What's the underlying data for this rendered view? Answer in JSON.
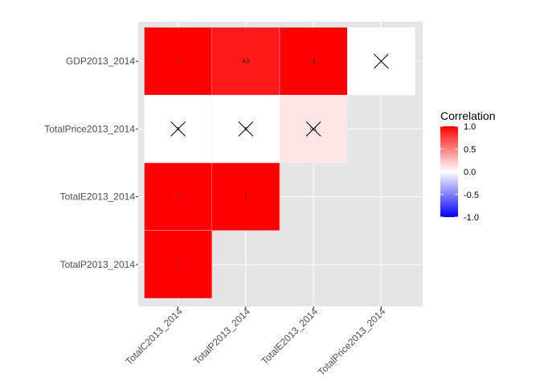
{
  "chart_data": {
    "type": "heatmap",
    "title": "",
    "xlabel": "",
    "ylabel": "",
    "x_categories": [
      "TotalC2013_2014",
      "TotalP2013_2014",
      "TotalE2013_2014",
      "TotalPrice2013_2014"
    ],
    "y_categories": [
      "GDP2013_2014",
      "TotalPrice2013_2014",
      "TotalE2013_2014",
      "TotalP2013_2014"
    ],
    "cells": [
      {
        "x": "TotalC2013_2014",
        "y": "GDP2013_2014",
        "value": 1.0,
        "label": "1",
        "insignificant": false
      },
      {
        "x": "TotalP2013_2014",
        "y": "GDP2013_2014",
        "value": 0.9,
        "label": "0.9",
        "insignificant": false
      },
      {
        "x": "TotalE2013_2014",
        "y": "GDP2013_2014",
        "value": 1.0,
        "label": "1",
        "insignificant": false
      },
      {
        "x": "TotalPrice2013_2014",
        "y": "GDP2013_2014",
        "value": 0.0,
        "label": "",
        "insignificant": true
      },
      {
        "x": "TotalC2013_2014",
        "y": "TotalPrice2013_2014",
        "value": 0.0,
        "label": "0",
        "insignificant": true
      },
      {
        "x": "TotalP2013_2014",
        "y": "TotalPrice2013_2014",
        "value": 0.0,
        "label": "0",
        "insignificant": true
      },
      {
        "x": "TotalE2013_2014",
        "y": "TotalPrice2013_2014",
        "value": 0.1,
        "label": "0.1",
        "insignificant": true
      },
      {
        "x": "TotalC2013_2014",
        "y": "TotalE2013_2014",
        "value": 1.0,
        "label": "1",
        "insignificant": false
      },
      {
        "x": "TotalP2013_2014",
        "y": "TotalE2013_2014",
        "value": 1.0,
        "label": "1",
        "insignificant": false
      },
      {
        "x": "TotalC2013_2014",
        "y": "TotalP2013_2014",
        "value": 1.0,
        "label": "1",
        "insignificant": false
      }
    ],
    "legend": {
      "title": "Correlation",
      "placement": "right",
      "range": [
        -1.0,
        1.0
      ],
      "ticks": [
        "1.0",
        "0.5",
        "0.0",
        "-0.5",
        "-1.0"
      ],
      "tick_values": [
        1.0,
        0.5,
        0.0,
        -0.5,
        -1.0
      ],
      "low_color": "#0000ff",
      "mid_color": "#ffffff",
      "high_color": "#ff0000"
    },
    "panel_background": "#e5e5e5",
    "grid": true
  }
}
